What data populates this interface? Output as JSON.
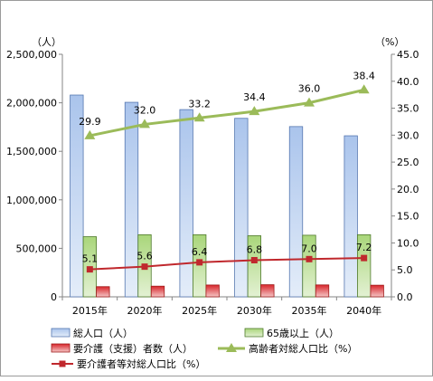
{
  "chart_data": {
    "type": "bar",
    "categories": [
      "2015年",
      "2020年",
      "2025年",
      "2030年",
      "2035年",
      "2040年"
    ],
    "left_axis": {
      "unit_label": "（人）",
      "ylim": [
        0,
        2500000
      ],
      "ticks": [
        0,
        500000,
        1000000,
        1500000,
        2000000,
        2500000
      ],
      "tick_labels": [
        "0",
        "500,000",
        "1,000,000",
        "1,500,000",
        "2,000,000",
        "2,500,000"
      ]
    },
    "right_axis": {
      "unit_label": "（%）",
      "ylim": [
        0,
        45
      ],
      "ticks": [
        0,
        5,
        10,
        15,
        20,
        25,
        30,
        35,
        40,
        45
      ],
      "tick_labels": [
        "0.0",
        "5.0",
        "10.0",
        "15.0",
        "20.0",
        "25.0",
        "30.0",
        "35.0",
        "40.0",
        "45.0"
      ]
    },
    "series": [
      {
        "name": "総人口（人）",
        "kind": "bar",
        "axis": "left",
        "color": "#7f9fd6",
        "values": [
          2080000,
          2005000,
          1930000,
          1840000,
          1755000,
          1660000
        ]
      },
      {
        "name": "65歳以上（人）",
        "kind": "bar",
        "axis": "left",
        "color": "#8cbd5a",
        "values": [
          620000,
          640000,
          640000,
          630000,
          635000,
          640000
        ]
      },
      {
        "name": "要介護（支援）者数（人）",
        "kind": "bar",
        "axis": "left",
        "color": "#d63a3a",
        "values": [
          105000,
          110000,
          122000,
          125000,
          123000,
          120000
        ]
      },
      {
        "name": "高齢者対総人口比（%）",
        "kind": "line",
        "axis": "right",
        "color": "#9bbb59",
        "values": [
          29.9,
          32.0,
          33.2,
          34.4,
          36.0,
          38.4
        ],
        "labels": [
          "29.9",
          "32.0",
          "33.2",
          "34.4",
          "36.0",
          "38.4"
        ]
      },
      {
        "name": "要介護者等対総人口比（%）",
        "kind": "line",
        "axis": "right",
        "color": "#c0282d",
        "values": [
          5.1,
          5.6,
          6.4,
          6.8,
          7.0,
          7.2
        ],
        "labels": [
          "5.1",
          "5.6",
          "6.4",
          "6.8",
          "7.0",
          "7.2"
        ]
      }
    ],
    "grid": false,
    "legend_position": "bottom"
  }
}
